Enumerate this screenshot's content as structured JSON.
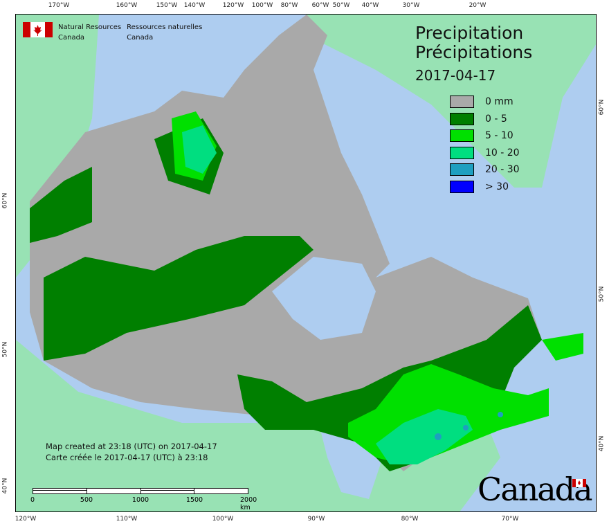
{
  "agency": {
    "en_line1": "Natural Resources",
    "en_line2": "Canada",
    "fr_line1": "Ressources naturelles",
    "fr_line2": "Canada"
  },
  "title": {
    "en": "Precipitation",
    "fr": "Précipitations",
    "date": "2017-04-17"
  },
  "legend": [
    {
      "label": "0 mm",
      "color": "#a9a9a9"
    },
    {
      "label": "0 - 5",
      "color": "#007f00"
    },
    {
      "label": "5 - 10",
      "color": "#00e000"
    },
    {
      "label": "10 - 20",
      "color": "#00de80"
    },
    {
      "label": "20 - 30",
      "color": "#1e9fc0"
    },
    {
      "label": "> 30",
      "color": "#0000ff"
    }
  ],
  "credits": {
    "en": "Map created at 23:18 (UTC) on 2017-04-17",
    "fr": "Carte créée le 2017-04-17 (UTC) à 23:18"
  },
  "scale": {
    "labels": [
      "0",
      "500",
      "1000",
      "1500",
      "2000 km"
    ]
  },
  "wordmark": "Canada",
  "graticule": {
    "top": [
      "170°W",
      "160°W",
      "150°W",
      "140°W",
      "120°W",
      "100°W",
      "80°W",
      "60°W",
      "50°W",
      "40°W",
      "30°W",
      "20°W"
    ],
    "bottom": [
      "120°W",
      "110°W",
      "100°W",
      "90°W",
      "80°W",
      "70°W"
    ],
    "left": [
      "60°N",
      "50°N",
      "40°N"
    ],
    "right": [
      "60°N",
      "50°N",
      "40°N"
    ]
  },
  "colors": {
    "ocean": "#aecdf0",
    "foreign_land": "#98e2b4",
    "no_precip": "#a9a9a9"
  }
}
